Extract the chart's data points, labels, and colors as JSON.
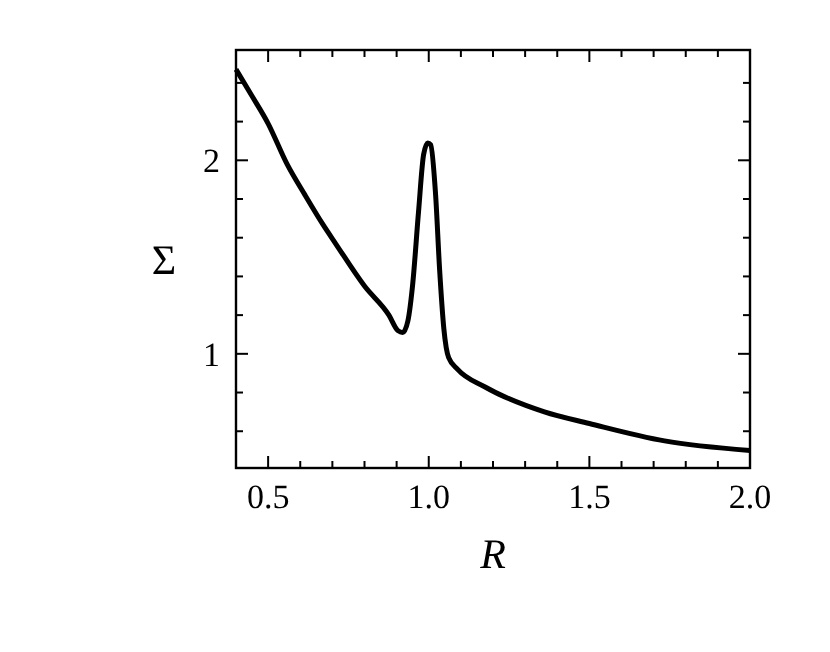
{
  "chart_data": {
    "type": "line",
    "xlabel": "R",
    "ylabel": "Σ",
    "xlim": [
      0.4,
      2.0
    ],
    "ylim": [
      0.41,
      2.57
    ],
    "xticks": [
      {
        "value": 0.4,
        "label": null
      },
      0.5,
      {
        "value": 0.6,
        "label": null
      },
      {
        "value": 0.7,
        "label": null
      },
      {
        "value": 0.8,
        "label": null
      },
      {
        "value": 0.9,
        "label": null
      },
      {
        "value": 1.0,
        "label": "1.0"
      },
      {
        "value": 1.1,
        "label": null
      },
      {
        "value": 1.2,
        "label": null
      },
      {
        "value": 1.3,
        "label": null
      },
      {
        "value": 1.4,
        "label": null
      },
      1.5,
      {
        "value": 1.6,
        "label": null
      },
      {
        "value": 1.7,
        "label": null
      },
      {
        "value": 1.8,
        "label": null
      },
      {
        "value": 1.9,
        "label": null
      },
      {
        "value": 2.0,
        "label": "2.0"
      }
    ],
    "yticks": [
      {
        "value": 0.6,
        "label": null
      },
      {
        "value": 0.8,
        "label": null
      },
      1,
      {
        "value": 1.2,
        "label": null
      },
      {
        "value": 1.4,
        "label": null
      },
      {
        "value": 1.6,
        "label": null
      },
      {
        "value": 1.8,
        "label": null
      },
      2,
      {
        "value": 2.2,
        "label": null
      },
      {
        "value": 2.4,
        "label": null
      }
    ],
    "grid": false,
    "marker": "none",
    "line_style": "solid",
    "series": [
      {
        "color": "#000000",
        "x": [
          0.4,
          0.447,
          0.5,
          0.559,
          0.615,
          0.67,
          0.71,
          0.8,
          0.876,
          0.904,
          0.919,
          0.935,
          0.95,
          0.968,
          0.984,
          0.997,
          1.006,
          1.021,
          1.034,
          1.047,
          1.062,
          1.09,
          1.174,
          1.36,
          1.5,
          1.734,
          2.0
        ],
        "values": [
          2.47,
          2.34,
          2.19,
          1.98,
          1.82,
          1.67,
          1.57,
          1.35,
          1.2,
          1.12,
          1.11,
          1.17,
          1.36,
          1.73,
          2.03,
          2.09,
          2.08,
          1.83,
          1.43,
          1.13,
          0.98,
          0.92,
          0.83,
          0.7,
          0.64,
          0.55,
          0.5
        ]
      }
    ]
  }
}
